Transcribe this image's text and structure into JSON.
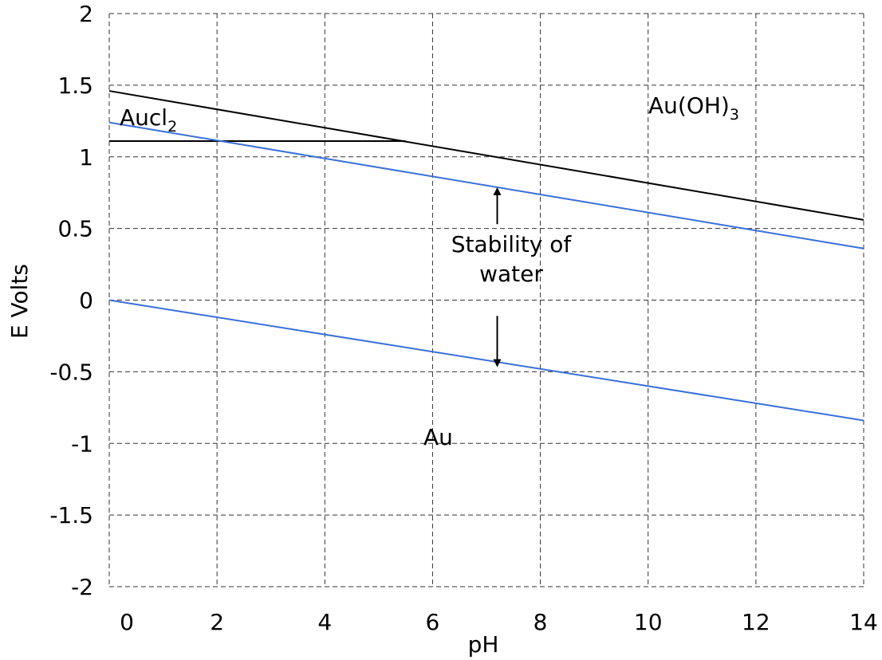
{
  "chart_data": {
    "type": "line",
    "xlabel": "pH",
    "ylabel": "E Volts",
    "xlim": [
      0,
      14
    ],
    "ylim": [
      -2,
      2
    ],
    "xticks": [
      "0",
      "2",
      "4",
      "6",
      "8",
      "10",
      "12",
      "14"
    ],
    "yticks": [
      "2",
      "1.5",
      "1",
      "0.5",
      "0",
      "-0.5",
      "-1",
      "-1.5",
      "-2"
    ],
    "grid": true,
    "series": [
      {
        "color": "#000000",
        "points": [
          [
            0,
            1.46
          ],
          [
            14,
            0.56
          ]
        ]
      },
      {
        "color": "#000000",
        "points": [
          [
            0,
            1.11
          ],
          [
            5.5,
            1.11
          ]
        ]
      },
      {
        "color": "#3a6fd8",
        "points": [
          [
            0,
            1.24
          ],
          [
            14,
            0.36
          ]
        ]
      },
      {
        "color": "#3a6fd8",
        "points": [
          [
            0,
            0.0
          ],
          [
            14,
            -0.84
          ]
        ]
      }
    ],
    "annotations": {
      "aucl2": {
        "main": "Aucl",
        "sub": "2",
        "x": 0.1,
        "y": 1.25
      },
      "auoh3": {
        "main": "Au(OH)",
        "sub": "3",
        "x": 10.1,
        "y": 1.3
      },
      "au": {
        "text": "Au",
        "x": 5.8,
        "y": -1.0
      },
      "stability_line1": {
        "text": "Stability of",
        "x": 6.85,
        "y": 0.38
      },
      "stability_line2": {
        "text": "water",
        "x": 6.85,
        "y": 0.17
      },
      "arrow_up": {
        "from": [
          7.2,
          0.53
        ],
        "to": [
          7.2,
          0.76
        ]
      },
      "arrow_down": {
        "from": [
          7.2,
          -0.11
        ],
        "to": [
          7.2,
          -0.44
        ]
      }
    }
  }
}
